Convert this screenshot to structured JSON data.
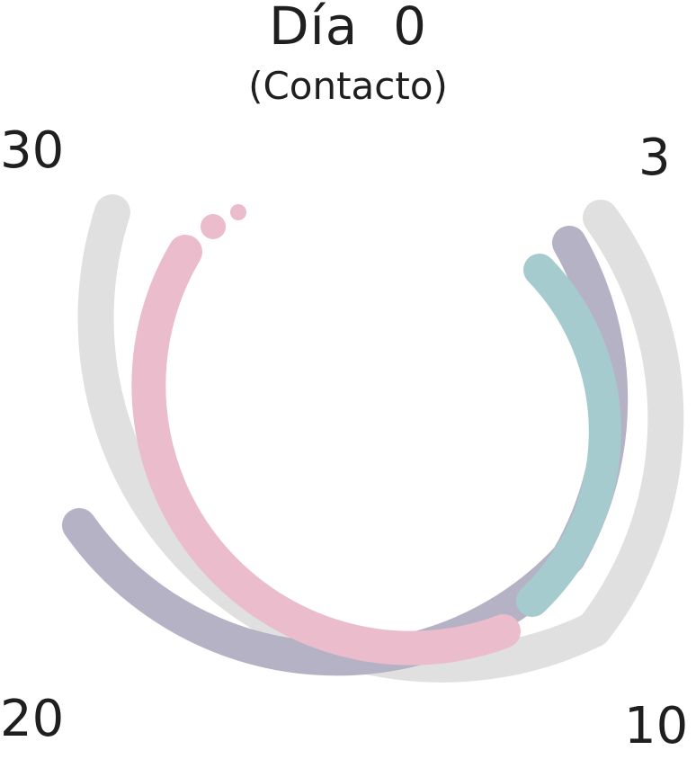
{
  "header": {
    "title": "Día  0",
    "subtitle": "(Contacto)"
  },
  "day_labels": {
    "d30": "30",
    "d3": "3",
    "d20": "20",
    "d10": "10"
  },
  "colors": {
    "gray": "#e0e0e0",
    "purple": "#b6b2c5",
    "pink": "#eabccc",
    "teal": "#a5cbcf"
  }
}
